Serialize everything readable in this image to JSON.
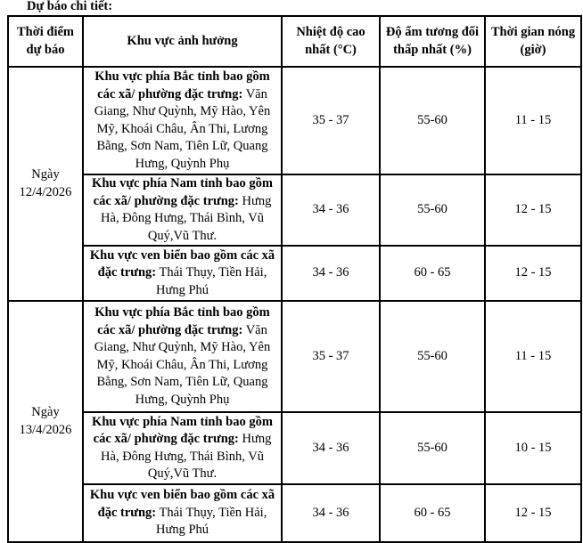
{
  "caption": "Dự báo chi tiết:",
  "headers": [
    "Thời điểm dự báo",
    "Khu vực ảnh hưởng",
    "Nhiệt độ cao nhất (°C)",
    "Độ ẩm tương đối thấp nhất (%)",
    "Thời gian nóng (giờ)"
  ],
  "days": [
    {
      "date": "Ngày 12/4/2026",
      "rows": [
        {
          "area_bold": "Khu vực phía Bắc tỉnh bao gồm các xã/ phường đặc trưng:",
          "area_text": " Văn Giang, Như Quỳnh, Mỹ Hào, Yên Mỹ, Khoái Châu, Ân Thi, Lương Bằng, Sơn Nam, Tiên Lữ, Quang Hưng, Quỳnh Phụ",
          "temp": "35 - 37",
          "humidity": "55-60",
          "hours": "11 - 15"
        },
        {
          "area_bold": "Khu vực phía Nam tỉnh bao gồm các xã/ phường đặc trưng:",
          "area_text": " Hưng Hà,  Đông Hưng, Thái Bình, Vũ Quý,Vũ Thư.",
          "temp": "34 - 36",
          "humidity": "55-60",
          "hours": "12 - 15"
        },
        {
          "area_bold": "Khu vực ven biển bao gồm các xã đặc trưng:",
          "area_text": " Thái Thụy, Tiền Hải, Hưng Phú",
          "temp": "34 - 36",
          "humidity": "60 - 65",
          "hours": "12 - 15"
        }
      ]
    },
    {
      "date": "Ngày 13/4/2026",
      "rows": [
        {
          "area_bold": "Khu vực phía Bắc tỉnh bao gồm các xã/ phường đặc trưng:",
          "area_text": " Văn Giang, Như Quỳnh, Mỹ Hào, Yên Mỹ, Khoái Châu, Ân Thi, Lương Bằng, Sơn Nam, Tiên Lữ, Quang Hưng, Quỳnh Phụ",
          "temp": "35 - 37",
          "humidity": "55-60",
          "hours": "11 - 15"
        },
        {
          "area_bold": "Khu vực phía Nam tỉnh bao gồm các xã/ phường đặc trưng:",
          "area_text": " Hưng Hà,  Đông Hưng, Thái Bình, Vũ Quý,Vũ Thư.",
          "temp": "34 - 36",
          "humidity": "55-60",
          "hours": "10 - 15"
        },
        {
          "area_bold": "Khu vực ven biển bao gồm các xã đặc trưng:",
          "area_text": " Thái Thụy, Tiền Hải, Hưng Phú",
          "temp": "34 - 36",
          "humidity": "60 - 65",
          "hours": "12 - 15"
        }
      ]
    }
  ]
}
